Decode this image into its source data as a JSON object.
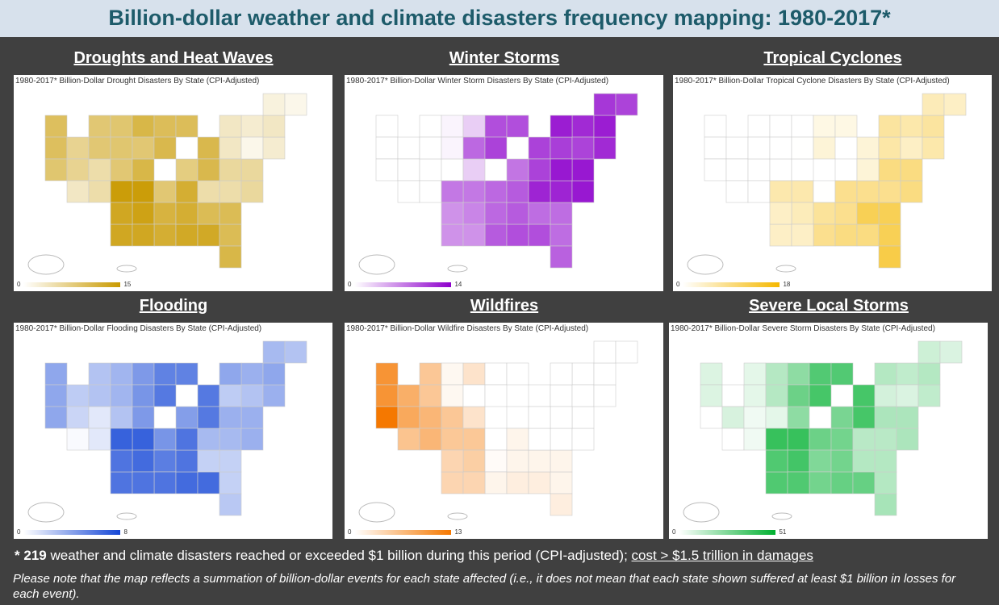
{
  "title": "Billion-dollar weather and climate disasters frequency mapping: 1980-2017*",
  "chart_data": [
    {
      "type": "heatmap",
      "section": "Droughts and Heat Waves",
      "caption": "1980-2017* Billion-Dollar Drought Disasters By State (CPI-Adjusted)",
      "legend_min": "0",
      "legend_max": "15",
      "max": 15,
      "color": "#c99a00",
      "regions": {
        "pnw": 8,
        "ca": 7,
        "sw": 5,
        "rockies": 9,
        "nplains": 10,
        "splains": 13,
        "midwest": 9,
        "south": 12,
        "se": 10,
        "midatl": 5,
        "ne": 2
      }
    },
    {
      "type": "heatmap",
      "section": "Winter Storms",
      "caption": "1980-2017* Billion-Dollar Winter Storm Disasters By State (CPI-Adjusted)",
      "legend_min": "0",
      "legend_max": "14",
      "max": 14,
      "color": "#8e00cc",
      "regions": {
        "pnw": 0,
        "ca": 0,
        "sw": 0,
        "rockies": 0,
        "nplains": 2,
        "splains": 6,
        "midwest": 9,
        "south": 9,
        "se": 8,
        "midatl": 12,
        "ne": 11
      }
    },
    {
      "type": "heatmap",
      "section": "Tropical Cyclones",
      "caption": "1980-2017* Billion-Dollar Tropical Cyclone Disasters By State (CPI-Adjusted)",
      "legend_min": "0",
      "legend_max": "18",
      "max": 18,
      "color": "#f5b800",
      "regions": {
        "pnw": 0,
        "ca": 0,
        "sw": 0,
        "rockies": 0,
        "nplains": 0,
        "splains": 4,
        "midwest": 1,
        "south": 8,
        "se": 12,
        "midatl": 8,
        "ne": 5
      }
    },
    {
      "type": "heatmap",
      "section": "Flooding",
      "caption": "1980-2017* Billion-Dollar Flooding Disasters By State (CPI-Adjusted)",
      "legend_min": "0",
      "legend_max": "8",
      "max": 8,
      "color": "#1446d6",
      "regions": {
        "pnw": 3,
        "ca": 3,
        "sw": 1,
        "rockies": 3,
        "nplains": 4,
        "splains": 6,
        "midwest": 5,
        "south": 6,
        "se": 2,
        "midatl": 3,
        "ne": 3
      }
    },
    {
      "type": "heatmap",
      "section": "Wildfires",
      "caption": "1980-2017* Billion-Dollar Wildfire Disasters By State (CPI-Adjusted)",
      "legend_min": "0",
      "legend_max": "13",
      "max": 13,
      "color": "#f57800",
      "regions": {
        "pnw": 9,
        "ca": 13,
        "sw": 7,
        "rockies": 6,
        "nplains": 2,
        "splains": 4,
        "midwest": 0,
        "south": 1,
        "se": 1,
        "midatl": 0,
        "ne": 0
      }
    },
    {
      "type": "heatmap",
      "section": "Severe Local Storms",
      "caption": "1980-2017* Billion-Dollar Severe Storm Disasters By State (CPI-Adjusted)",
      "legend_min": "0",
      "legend_max": "51",
      "max": 51,
      "color": "#00b030",
      "regions": {
        "pnw": 2,
        "ca": 0,
        "sw": 3,
        "rockies": 8,
        "nplains": 20,
        "splains": 35,
        "midwest": 32,
        "south": 28,
        "se": 15,
        "midatl": 14,
        "ne": 10
      }
    }
  ],
  "notes": {
    "star": "*",
    "count": "219",
    "text": " weather and climate disasters reached or exceeded $1 billion during this period (CPI-adjusted); ",
    "cost": "cost > $1.5 trillion in damages",
    "disclaimer": "Please note that the map reflects a summation of billion-dollar events for each state affected (i.e., it does not mean that each state shown suffered at least $1 billion in losses for each event)."
  }
}
